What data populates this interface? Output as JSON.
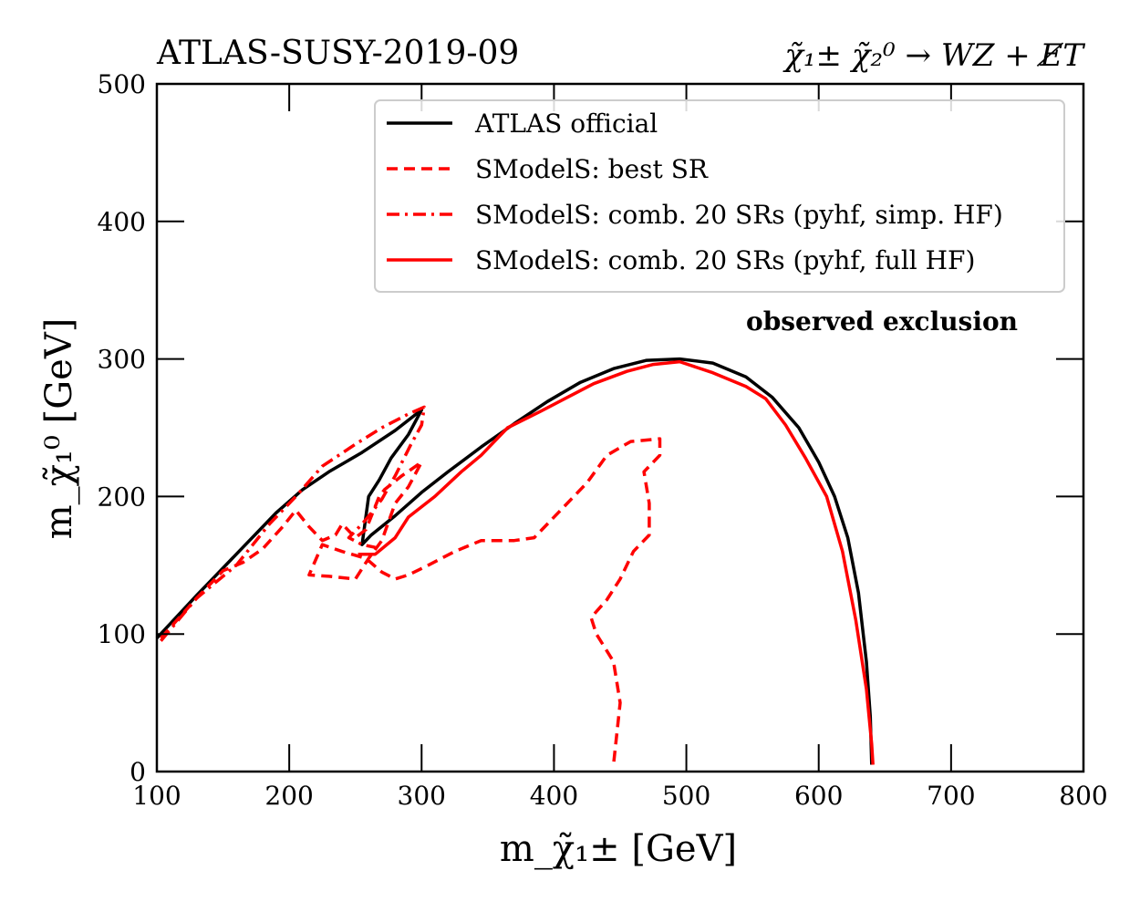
{
  "chart_data": {
    "type": "line",
    "title_left": "ATLAS-SUSY-2019-09",
    "title_right": "χ̃₁± χ̃₂⁰ → WZ + E̸T",
    "xlabel": "m_χ̃₁± [GeV]",
    "ylabel": "m_χ̃₁⁰ [GeV]",
    "xlim": [
      100,
      800
    ],
    "ylim": [
      0,
      500
    ],
    "xticks": [
      100,
      200,
      300,
      400,
      500,
      600,
      700,
      800
    ],
    "yticks": [
      0,
      100,
      200,
      300,
      400,
      500
    ],
    "legend_position": "top-right",
    "annotation": "observed exclusion",
    "series": [
      {
        "name": "ATLAS official",
        "color": "#000000",
        "dash": "solid",
        "points": [
          [
            100,
            97
          ],
          [
            130,
            128
          ],
          [
            160,
            158
          ],
          [
            190,
            188
          ],
          [
            210,
            205
          ],
          [
            230,
            218
          ],
          [
            255,
            232
          ],
          [
            280,
            248
          ],
          [
            300,
            263
          ],
          [
            290,
            245
          ],
          [
            277,
            228
          ],
          [
            268,
            212
          ],
          [
            260,
            200
          ],
          [
            255,
            165
          ],
          [
            262,
            172
          ],
          [
            280,
            186
          ],
          [
            300,
            203
          ],
          [
            320,
            218
          ],
          [
            345,
            236
          ],
          [
            370,
            253
          ],
          [
            395,
            269
          ],
          [
            420,
            283
          ],
          [
            445,
            293
          ],
          [
            470,
            299
          ],
          [
            495,
            300
          ],
          [
            520,
            297
          ],
          [
            545,
            287
          ],
          [
            565,
            272
          ],
          [
            585,
            250
          ],
          [
            600,
            225
          ],
          [
            612,
            200
          ],
          [
            622,
            170
          ],
          [
            630,
            130
          ],
          [
            636,
            80
          ],
          [
            639,
            40
          ],
          [
            640,
            5
          ]
        ]
      },
      {
        "name": "SModelS: best SR",
        "color": "#ff0000",
        "dash": "dashed",
        "points": [
          [
            103,
            97
          ],
          [
            130,
            126
          ],
          [
            150,
            146
          ],
          [
            165,
            152
          ],
          [
            180,
            162
          ],
          [
            195,
            178
          ],
          [
            205,
            190
          ],
          [
            215,
            178
          ],
          [
            225,
            168
          ],
          [
            235,
            172
          ],
          [
            240,
            180
          ],
          [
            250,
            170
          ],
          [
            258,
            176
          ],
          [
            268,
            200
          ],
          [
            272,
            205
          ],
          [
            285,
            215
          ],
          [
            300,
            225
          ],
          [
            290,
            207
          ],
          [
            280,
            195
          ],
          [
            270,
            168
          ],
          [
            260,
            155
          ],
          [
            250,
            140
          ],
          [
            230,
            142
          ],
          [
            215,
            143
          ],
          [
            225,
            165
          ],
          [
            240,
            160
          ],
          [
            258,
            155
          ],
          [
            270,
            145
          ],
          [
            280,
            140
          ],
          [
            290,
            143
          ],
          [
            305,
            150
          ],
          [
            325,
            160
          ],
          [
            345,
            168
          ],
          [
            370,
            168
          ],
          [
            385,
            170
          ],
          [
            405,
            190
          ],
          [
            425,
            210
          ],
          [
            440,
            230
          ],
          [
            458,
            240
          ],
          [
            480,
            242
          ],
          [
            480,
            230
          ],
          [
            468,
            218
          ],
          [
            472,
            195
          ],
          [
            472,
            172
          ],
          [
            460,
            160
          ],
          [
            450,
            140
          ],
          [
            440,
            125
          ],
          [
            428,
            112
          ],
          [
            432,
            100
          ],
          [
            445,
            80
          ],
          [
            450,
            50
          ],
          [
            445,
            5
          ]
        ]
      },
      {
        "name": "SModelS: comb. 20 SRs (pyhf, simp. HF)",
        "color": "#ff0000",
        "dash": "dashdot",
        "points": [
          [
            103,
            95
          ],
          [
            130,
            126
          ],
          [
            160,
            150
          ],
          [
            185,
            180
          ],
          [
            205,
            200
          ],
          [
            225,
            222
          ],
          [
            250,
            238
          ],
          [
            270,
            250
          ],
          [
            290,
            260
          ],
          [
            302,
            265
          ],
          [
            300,
            252
          ],
          [
            292,
            238
          ],
          [
            280,
            215
          ],
          [
            270,
            198
          ],
          [
            262,
            188
          ],
          [
            255,
            180
          ],
          [
            250,
            175
          ],
          [
            245,
            170
          ],
          [
            255,
            165
          ],
          [
            265,
            163
          ]
        ]
      },
      {
        "name": "SModelS: comb. 20 SRs (pyhf, full HF)",
        "color": "#ff0000",
        "dash": "solid",
        "points": [
          [
            252,
            158
          ],
          [
            265,
            158
          ],
          [
            280,
            170
          ],
          [
            290,
            185
          ],
          [
            310,
            200
          ],
          [
            330,
            218
          ],
          [
            345,
            230
          ],
          [
            365,
            250
          ],
          [
            390,
            262
          ],
          [
            410,
            272
          ],
          [
            430,
            282
          ],
          [
            455,
            291
          ],
          [
            475,
            296
          ],
          [
            495,
            298
          ],
          [
            520,
            290
          ],
          [
            545,
            280
          ],
          [
            560,
            271
          ],
          [
            575,
            252
          ],
          [
            590,
            228
          ],
          [
            606,
            200
          ],
          [
            618,
            160
          ],
          [
            628,
            110
          ],
          [
            636,
            60
          ],
          [
            640,
            20
          ],
          [
            641,
            5
          ]
        ]
      }
    ]
  }
}
